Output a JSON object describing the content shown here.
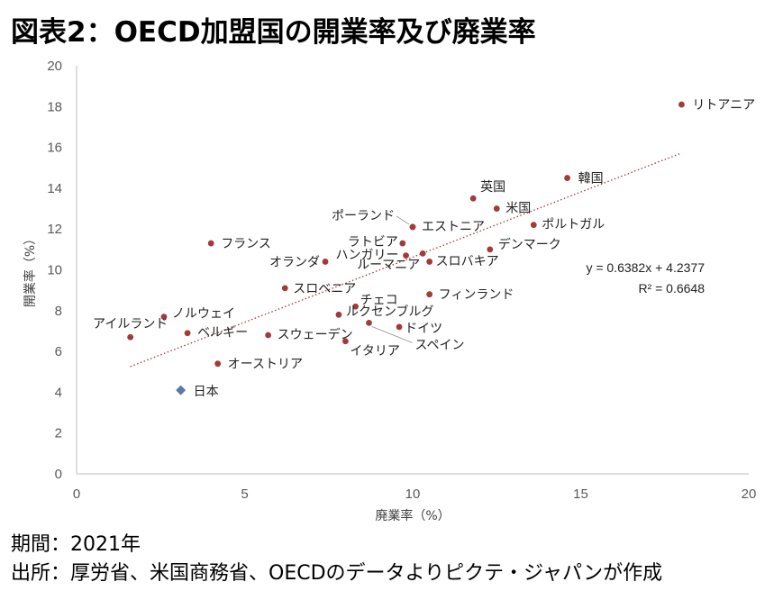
{
  "title": "図表2：OECD加盟国の開業率及び廃業率",
  "period": "期間：2021年",
  "source": "出所：厚労省、米国商務省、OECDのデータよりピクテ・ジャパンが作成",
  "colors": {
    "point": "#a33a3a",
    "japan": "#5b7aa6",
    "trend": "#a33a3a",
    "axis": "#bfbfbf"
  },
  "chart_data": {
    "type": "scatter",
    "xlabel": "廃業率（%）",
    "ylabel": "開業率（%）",
    "xlim": [
      0,
      20
    ],
    "ylim": [
      0,
      20
    ],
    "xticks": [
      0,
      5,
      10,
      15,
      20
    ],
    "yticks": [
      0,
      2,
      4,
      6,
      8,
      10,
      12,
      14,
      16,
      18,
      20
    ],
    "grid": false,
    "trendline": {
      "slope": 0.6382,
      "intercept": 4.2377,
      "x_range": [
        1.6,
        18.0
      ],
      "style": "dotted"
    },
    "equation": "y = 0.6382x + 4.2377",
    "r_squared": "R² = 0.6648",
    "points": [
      {
        "label": "リトアニア",
        "x": 18.0,
        "y": 18.1
      },
      {
        "label": "韓国",
        "x": 14.6,
        "y": 14.5
      },
      {
        "label": "英国",
        "x": 11.8,
        "y": 13.5
      },
      {
        "label": "米国",
        "x": 12.5,
        "y": 13.0
      },
      {
        "label": "ポルトガル",
        "x": 13.6,
        "y": 12.2
      },
      {
        "label": "ポーランド",
        "x": 10.0,
        "y": 12.1
      },
      {
        "label": "エストニア",
        "x": 10.0,
        "y": 12.1
      },
      {
        "label": "フランス",
        "x": 4.0,
        "y": 11.3
      },
      {
        "label": "ラトビア",
        "x": 9.7,
        "y": 11.3
      },
      {
        "label": "デンマーク",
        "x": 12.3,
        "y": 11.0
      },
      {
        "label": "オランダ",
        "x": 7.4,
        "y": 10.4
      },
      {
        "label": "ハンガリー",
        "x": 9.8,
        "y": 10.7
      },
      {
        "label": "ルーマニア",
        "x": 10.3,
        "y": 10.8
      },
      {
        "label": "スロバキア",
        "x": 10.5,
        "y": 10.4
      },
      {
        "label": "スロベニア",
        "x": 6.2,
        "y": 9.1
      },
      {
        "label": "フィンランド",
        "x": 10.5,
        "y": 8.8
      },
      {
        "label": "チェコ",
        "x": 8.3,
        "y": 8.2
      },
      {
        "label": "ルクセンブルグ",
        "x": 7.8,
        "y": 7.8
      },
      {
        "label": "ノルウェイ",
        "x": 2.6,
        "y": 7.7
      },
      {
        "label": "アイルランド",
        "x": 1.6,
        "y": 6.7
      },
      {
        "label": "ベルギー",
        "x": 3.3,
        "y": 6.9
      },
      {
        "label": "スウェーデン",
        "x": 5.7,
        "y": 6.8
      },
      {
        "label": "ドイツ",
        "x": 9.6,
        "y": 7.2
      },
      {
        "label": "スペイン",
        "x": 8.7,
        "y": 7.4
      },
      {
        "label": "イタリア",
        "x": 8.0,
        "y": 6.5
      },
      {
        "label": "オーストリア",
        "x": 4.2,
        "y": 5.4
      },
      {
        "label": "日本",
        "x": 3.1,
        "y": 4.1,
        "highlight": true
      }
    ]
  }
}
